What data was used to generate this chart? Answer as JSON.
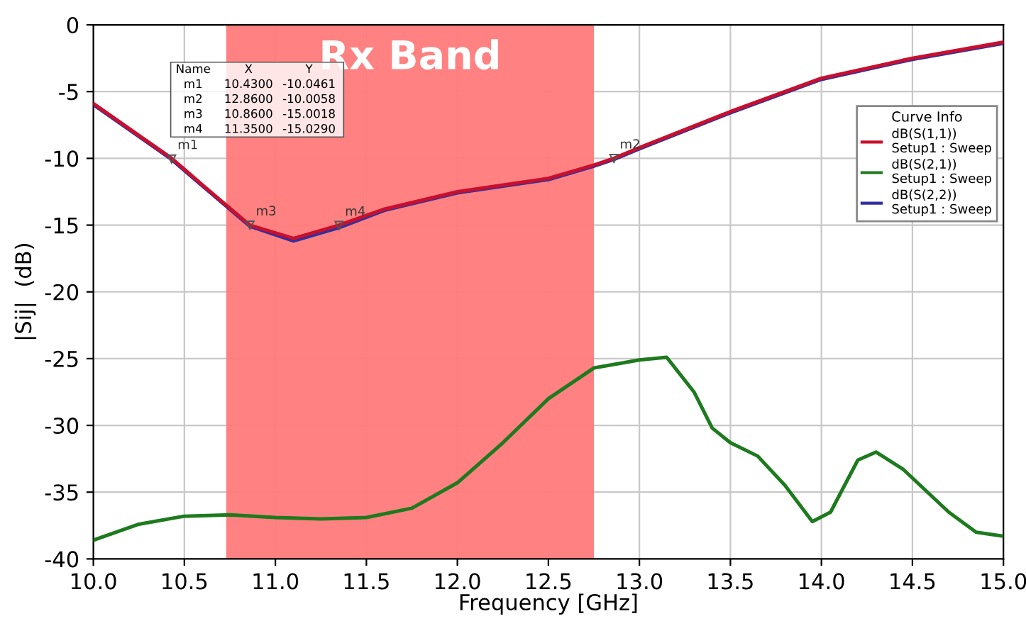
{
  "chart_data": {
    "type": "line",
    "xlabel": "Frequency [GHz]",
    "ylabel": "|Sij|  (dB)",
    "legend_title": "Curve Info",
    "xlim": [
      10,
      15
    ],
    "ylim": [
      -40,
      0
    ],
    "xticks": [
      {
        "value": 10,
        "label": "10.0"
      },
      {
        "value": 10.5,
        "label": "10.5"
      },
      {
        "value": 11,
        "label": "11.0"
      },
      {
        "value": 11.5,
        "label": "11.5"
      },
      {
        "value": 12,
        "label": "12.0"
      },
      {
        "value": 12.5,
        "label": "12.5"
      },
      {
        "value": 13,
        "label": "13.0"
      },
      {
        "value": 13.5,
        "label": "13.5"
      },
      {
        "value": 14,
        "label": "14.0"
      },
      {
        "value": 14.5,
        "label": "14.5"
      },
      {
        "value": 15,
        "label": "15.0"
      }
    ],
    "yticks": [
      -40,
      -35,
      -30,
      -25,
      -20,
      -15,
      -10,
      -5,
      0
    ],
    "grid": true,
    "legend": "top right",
    "line_style": "solid",
    "marker": "none",
    "bands": [
      {
        "axis": "x",
        "from": 10.73,
        "to": 12.75,
        "label": "Rx Band",
        "color": "#ff7a7a"
      }
    ],
    "series": [
      {
        "name": "dB(S(2,2))\nSetup1 : Sweep",
        "color": "#3030a0",
        "x": [
          10.0,
          10.43,
          10.6,
          10.86,
          11.1,
          11.35,
          11.6,
          12.0,
          12.5,
          12.75,
          12.86,
          13.0,
          13.5,
          14.0,
          14.5,
          15.0
        ],
        "values": [
          -6.0,
          -10.1,
          -12.1,
          -15.1,
          -16.2,
          -15.2,
          -13.9,
          -12.6,
          -11.6,
          -10.6,
          -10.1,
          -9.3,
          -6.6,
          -4.1,
          -2.6,
          -1.4
        ]
      },
      {
        "name": "dB(S(1,1))\nSetup1 : Sweep",
        "color": "#c8102e",
        "x": [
          10.0,
          10.43,
          10.6,
          10.86,
          11.1,
          11.35,
          11.6,
          12.0,
          12.5,
          12.75,
          12.86,
          13.0,
          13.5,
          14.0,
          14.5,
          15.0
        ],
        "values": [
          -5.9,
          -10.0,
          -12.0,
          -15.0,
          -16.0,
          -15.0,
          -13.8,
          -12.5,
          -11.5,
          -10.5,
          -10.0,
          -9.2,
          -6.5,
          -4.0,
          -2.5,
          -1.3
        ]
      },
      {
        "name": "dB(S(2,1))\nSetup1 : Sweep",
        "color": "#1e7a1e",
        "x": [
          10.0,
          10.25,
          10.5,
          10.75,
          11.0,
          11.25,
          11.5,
          11.75,
          12.0,
          12.25,
          12.5,
          12.75,
          13.0,
          13.15,
          13.3,
          13.4,
          13.5,
          13.65,
          13.8,
          13.95,
          14.05,
          14.2,
          14.3,
          14.45,
          14.7,
          14.85,
          15.0
        ],
        "values": [
          -38.6,
          -37.4,
          -36.8,
          -36.7,
          -36.9,
          -37.0,
          -36.9,
          -36.2,
          -34.3,
          -31.3,
          -28.0,
          -25.7,
          -25.1,
          -24.9,
          -27.5,
          -30.2,
          -31.3,
          -32.3,
          -34.5,
          -37.2,
          -36.5,
          -32.6,
          -32.0,
          -33.3,
          -36.5,
          -38.0,
          -38.3
        ]
      }
    ],
    "annotations": [
      "Name",
      "X",
      "Y",
      "m1",
      "10.4300",
      "-10.0461",
      "m2",
      "12.8600",
      "-10.0058",
      "m3",
      "10.8600",
      "-15.0018",
      "m4",
      "11.3500",
      "-15.0290",
      {
        "text": "m1",
        "x": 10.43,
        "y": -10.0461
      },
      {
        "text": "m2",
        "x": 12.86,
        "y": -10.0058
      },
      {
        "text": "m3",
        "x": 10.86,
        "y": -15.0018
      },
      {
        "text": "m4",
        "x": 11.35,
        "y": -15.029
      }
    ]
  }
}
